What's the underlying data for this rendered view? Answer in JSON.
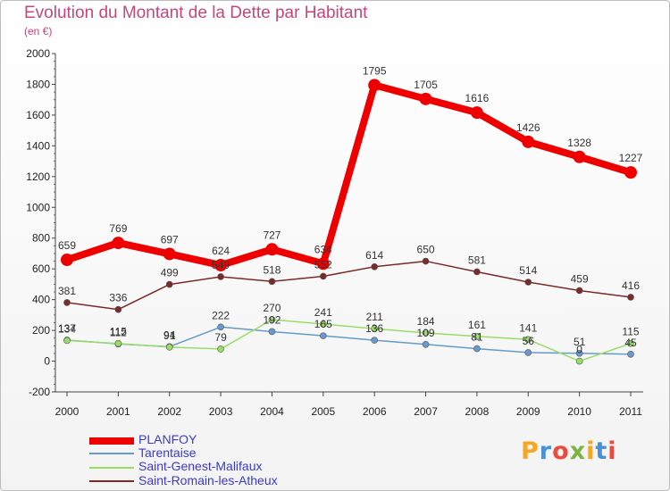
{
  "title": "Evolution du Montant de la Dette par Habitant",
  "unit": "(en €)",
  "logo": {
    "letters": [
      "P",
      "r",
      "o",
      "x",
      "i",
      "t",
      "i"
    ],
    "colors": [
      "#f5a623",
      "#4a90d9",
      "#e94b3c",
      "#7cb342",
      "#f5a623",
      "#4a90d9",
      "#e94b3c"
    ]
  },
  "chart_data": {
    "type": "line",
    "title": "Evolution du Montant de la Dette par Habitant",
    "ylabel": "(en €)",
    "xlabel": "",
    "ylim": [
      -200,
      2000
    ],
    "y_ticks": [
      "-200",
      "0",
      "200",
      "400",
      "600",
      "800",
      "1000",
      "1200",
      "1400",
      "1600",
      "1800",
      "2000"
    ],
    "x": [
      "2000",
      "2001",
      "2002",
      "2003",
      "2004",
      "2005",
      "2006",
      "2007",
      "2008",
      "2009",
      "2010",
      "2011"
    ],
    "grid": false,
    "legend": "bottom-left",
    "series": [
      {
        "name": "PLANFOY",
        "color": "#ee0000",
        "width": 8,
        "values": [
          659,
          769,
          697,
          624,
          727,
          634,
          1795,
          1705,
          1616,
          1426,
          1328,
          1227
        ],
        "labels": [
          "659",
          "769",
          "697",
          "624",
          "727",
          "634",
          "1795",
          "1705",
          "1616",
          "1426",
          "1328",
          "1227"
        ]
      },
      {
        "name": "Tarentaise",
        "color": "#6699cc",
        "width": 1.5,
        "values": [
          137,
          112,
          94,
          222,
          192,
          165,
          136,
          109,
          81,
          56,
          51,
          45
        ],
        "labels": [
          "137",
          "112",
          "94",
          "222",
          "192",
          "165",
          "136",
          "109",
          "81",
          "56",
          "51",
          "45"
        ]
      },
      {
        "name": "Saint-Genest-Malifaux",
        "color": "#99dd66",
        "width": 1.5,
        "values": [
          134,
          115,
          91,
          79,
          270,
          241,
          211,
          184,
          161,
          141,
          0,
          115
        ],
        "labels": [
          "134",
          "115",
          "91",
          "79",
          "270",
          "241",
          "211",
          "184",
          "161",
          "141",
          "0",
          "115"
        ]
      },
      {
        "name": "Saint-Romain-les-Atheux",
        "color": "#7a2a2a",
        "width": 1.5,
        "values": [
          381,
          336,
          499,
          549,
          518,
          552,
          614,
          650,
          581,
          514,
          459,
          416
        ],
        "labels": [
          "381",
          "336",
          "499",
          "549",
          "518",
          "552",
          "614",
          "650",
          "581",
          "514",
          "459",
          "416"
        ]
      }
    ]
  }
}
